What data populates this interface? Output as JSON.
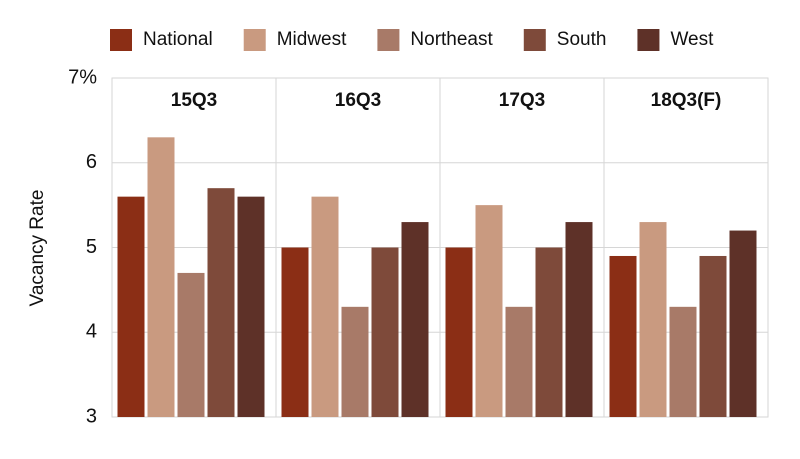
{
  "chart_data": {
    "type": "bar",
    "y_label": "Vacancy Rate",
    "categories": [
      "15Q3",
      "16Q3",
      "17Q3",
      "18Q3(F)"
    ],
    "series": [
      {
        "name": "National",
        "color": "#8b2e15",
        "values": [
          5.6,
          5.0,
          5.0,
          4.9
        ]
      },
      {
        "name": "Midwest",
        "color": "#c99a80",
        "values": [
          6.3,
          5.6,
          5.5,
          5.3
        ]
      },
      {
        "name": "Northeast",
        "color": "#a87a68",
        "values": [
          4.7,
          4.3,
          4.3,
          4.3
        ]
      },
      {
        "name": "South",
        "color": "#7e4a3a",
        "values": [
          5.7,
          5.0,
          5.0,
          4.9
        ]
      },
      {
        "name": "West",
        "color": "#5e3128",
        "values": [
          5.6,
          5.3,
          5.3,
          5.2
        ]
      }
    ],
    "ylim": [
      3,
      7
    ],
    "yticks": [
      3,
      4,
      5,
      6,
      {
        "value": 7,
        "label": "7%"
      }
    ],
    "grid": true
  }
}
